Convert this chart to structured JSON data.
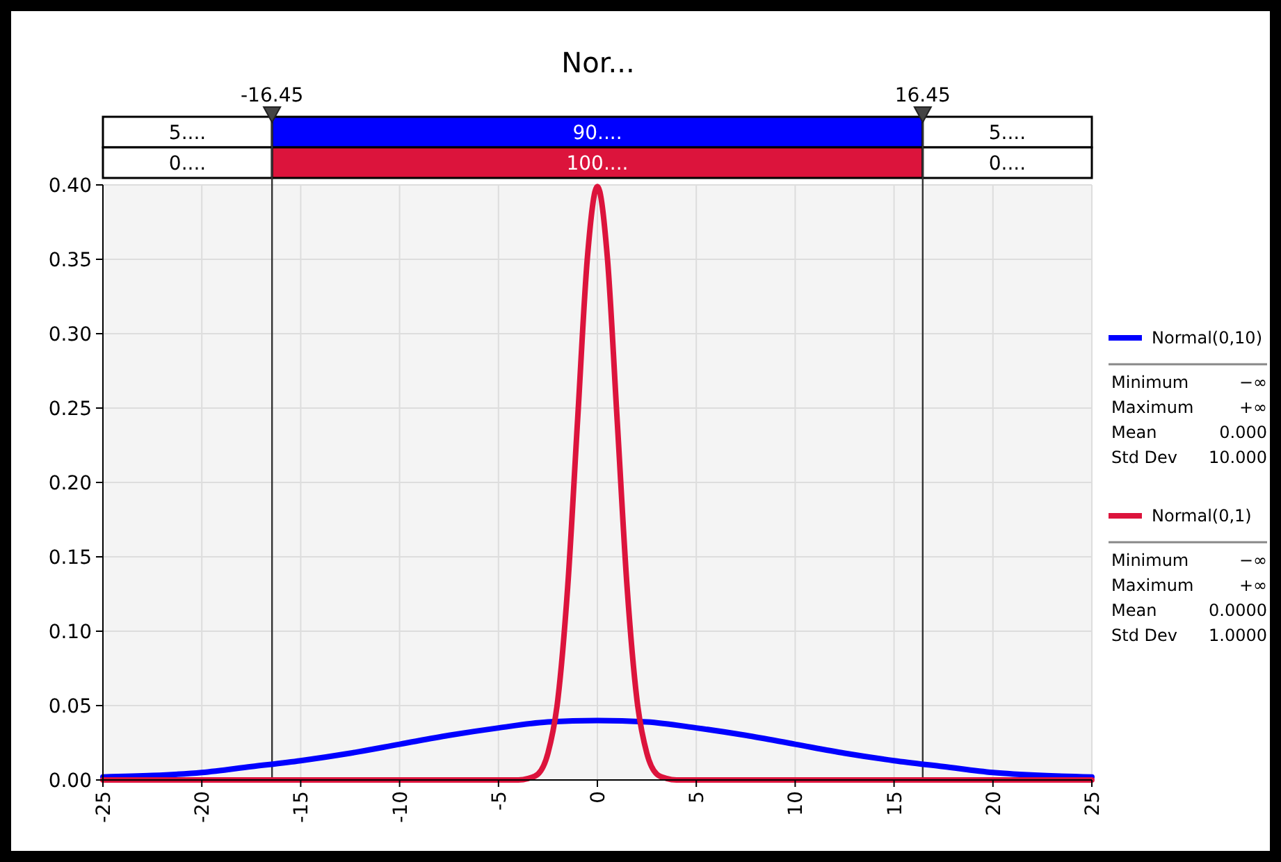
{
  "chart_data": {
    "type": "line",
    "title": "Nor...",
    "series": [
      {
        "name": "Normal(0,10)",
        "color": "#0000ff",
        "x": [
          -25,
          -22.5,
          -20,
          -17.5,
          -15,
          -12.5,
          -10,
          -7.5,
          -5,
          -2.5,
          0,
          2.5,
          5,
          7.5,
          10,
          12.5,
          15,
          17.5,
          20,
          22.5,
          25
        ],
        "values": [
          0.002,
          0.003,
          0.005,
          0.009,
          0.013,
          0.018,
          0.024,
          0.03,
          0.035,
          0.039,
          0.04,
          0.039,
          0.035,
          0.03,
          0.024,
          0.018,
          0.013,
          0.009,
          0.005,
          0.003,
          0.002
        ]
      },
      {
        "name": "Normal(0,1)",
        "color": "#dc143c",
        "x": [
          -25,
          -4,
          -3.5,
          -3,
          -2.5,
          -2,
          -1.5,
          -1,
          -0.5,
          0,
          0.5,
          1,
          1.5,
          2,
          2.5,
          3,
          3.5,
          4,
          25
        ],
        "values": [
          0,
          0,
          0.001,
          0.004,
          0.018,
          0.054,
          0.13,
          0.242,
          0.352,
          0.399,
          0.352,
          0.242,
          0.13,
          0.054,
          0.018,
          0.004,
          0.001,
          0,
          0
        ]
      }
    ],
    "xlim": [
      -25,
      25
    ],
    "xticks": [
      -25,
      -20,
      -15,
      -10,
      -5,
      0,
      5,
      10,
      15,
      20,
      25
    ],
    "ylim": [
      0,
      0.4
    ],
    "yticks": [
      {
        "value": 0,
        "label": "0.00"
      },
      {
        "value": 0.05,
        "label": "0.05"
      },
      {
        "value": 0.1,
        "label": "0.10"
      },
      {
        "value": 0.15,
        "label": "0.15"
      },
      {
        "value": 0.2,
        "label": "0.20"
      },
      {
        "value": 0.25,
        "label": "0.25"
      },
      {
        "value": 0.3,
        "label": "0.30"
      },
      {
        "value": 0.35,
        "label": "0.35"
      },
      {
        "value": 0.4,
        "label": "0.40"
      }
    ],
    "ref_lines": [
      {
        "axis": "x",
        "value": -16.45,
        "label": "-16.45",
        "color": "#333333"
      },
      {
        "axis": "x",
        "value": 16.45,
        "label": "16.45",
        "color": "#333333"
      }
    ],
    "annotations": [
      "5....",
      "90....",
      "5....",
      "0....",
      "100....",
      "0....",
      "Minimum",
      "−∞",
      "Maximum",
      "+∞",
      "Mean",
      "0.000",
      "Std Dev",
      "10.000",
      "Minimum",
      "−∞",
      "Maximum",
      "+∞",
      "Mean",
      "0.0000",
      "Std Dev",
      "1.0000"
    ],
    "grid": true,
    "legend": "right",
    "line_style": "solid",
    "marker": "none"
  }
}
